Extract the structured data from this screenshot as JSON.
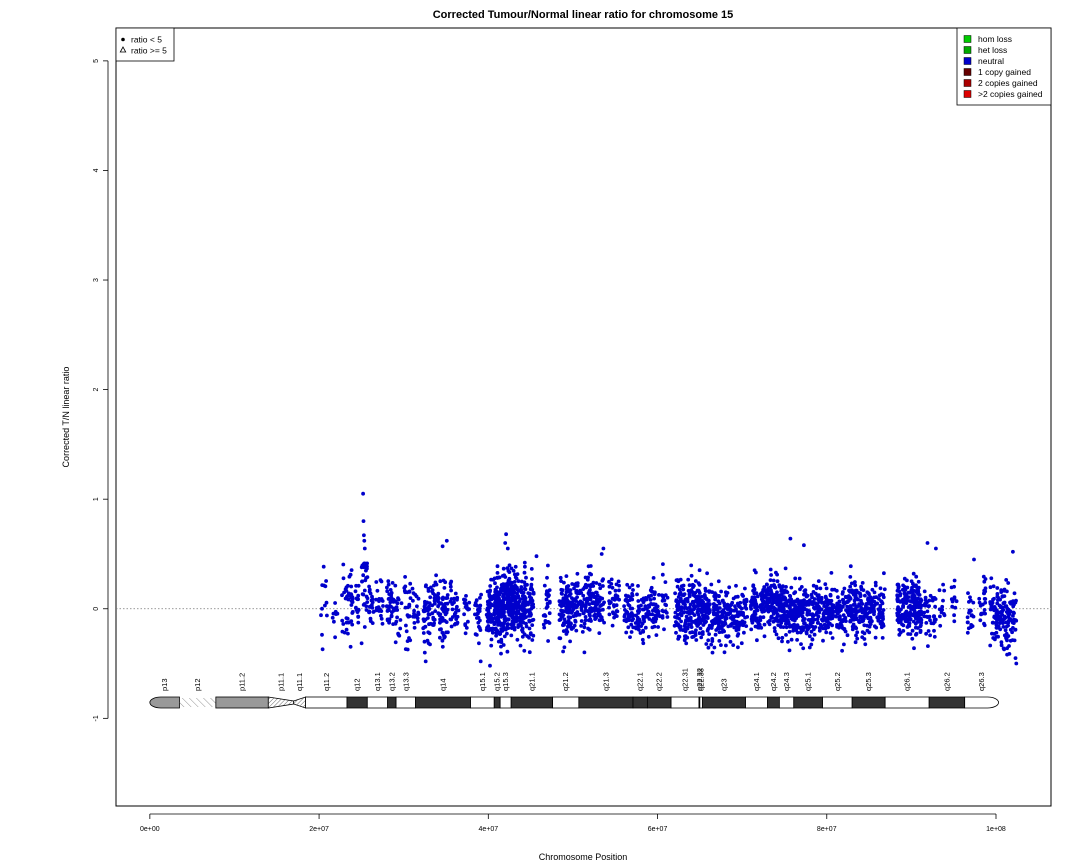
{
  "chart_data": {
    "type": "scatter",
    "title": "Corrected Tumour/Normal linear ratio for chromosome  15",
    "xlabel": "Chromosome Position",
    "ylabel": "Corrected T/N linear ratio",
    "xlim": [
      -4000000,
      106500000
    ],
    "ylim": [
      -1.8,
      5.3
    ],
    "x_ticks": [
      0,
      20000000,
      40000000,
      60000000,
      80000000,
      100000000
    ],
    "x_tick_labels": [
      "0e+00",
      "2e+07",
      "4e+07",
      "6e+07",
      "8e+07",
      "1e+08"
    ],
    "y_ticks": [
      -1,
      0,
      1,
      2,
      3,
      4,
      5
    ],
    "y_tick_labels": [
      "-1",
      "0",
      "1",
      "2",
      "3",
      "4",
      "5"
    ],
    "reference_line": 0,
    "shape_legend": {
      "position": "top-left",
      "entries": [
        {
          "symbol": "dot",
          "label": "ratio < 5"
        },
        {
          "symbol": "triangle",
          "label": "ratio >= 5"
        }
      ]
    },
    "color_legend": {
      "position": "top-right",
      "entries": [
        {
          "label": "hom loss",
          "color": "#00cc00"
        },
        {
          "label": "het loss",
          "color": "#00aa00"
        },
        {
          "label": "neutral",
          "color": "#0000cc"
        },
        {
          "label": "1 copy gained",
          "color": "#660000"
        },
        {
          "label": "2 copies gained",
          "color": "#aa0000"
        },
        {
          "label": ">2 copies gained",
          "color": "#dd0000"
        }
      ]
    },
    "series": [
      {
        "color": "#0000cc",
        "clusters": [
          [
            20200000,
            21000000,
            0.05,
            0.17,
            12,
            11
          ],
          [
            21600000,
            22300000,
            0.0,
            0.12,
            10,
            12
          ],
          [
            22700000,
            23600000,
            0.04,
            0.14,
            24,
            13
          ],
          [
            23700000,
            24100000,
            0.08,
            0.15,
            18,
            14
          ],
          [
            24300000,
            24700000,
            0.05,
            0.13,
            15,
            15
          ],
          [
            25000000,
            25800000,
            0.2,
            0.22,
            30,
            16
          ],
          [
            25900000,
            26500000,
            0.05,
            0.12,
            20,
            17
          ],
          [
            26700000,
            27600000,
            0.0,
            0.13,
            22,
            18
          ],
          [
            28000000,
            28800000,
            0.05,
            0.13,
            36,
            19
          ],
          [
            29000000,
            29800000,
            -0.03,
            0.14,
            20,
            20
          ],
          [
            30000000,
            30800000,
            -0.05,
            0.16,
            25,
            21
          ],
          [
            31000000,
            31800000,
            0.0,
            0.12,
            18,
            22
          ],
          [
            32200000,
            33200000,
            -0.02,
            0.15,
            40,
            23
          ],
          [
            33200000,
            34200000,
            0.06,
            0.14,
            30,
            24
          ],
          [
            34200000,
            35300000,
            -0.05,
            0.15,
            50,
            25
          ],
          [
            35500000,
            36500000,
            0.02,
            0.13,
            30,
            26
          ],
          [
            37100000,
            37800000,
            0.0,
            0.12,
            20,
            27
          ],
          [
            38400000,
            39200000,
            -0.05,
            0.14,
            25,
            28
          ],
          [
            39800000,
            40700000,
            -0.03,
            0.13,
            60,
            29
          ],
          [
            40700000,
            42100000,
            0.03,
            0.15,
            180,
            30
          ],
          [
            42200000,
            43600000,
            0.05,
            0.14,
            180,
            31
          ],
          [
            43700000,
            45400000,
            0.02,
            0.15,
            130,
            32
          ],
          [
            46500000,
            47300000,
            0.06,
            0.13,
            30,
            33
          ],
          [
            48400000,
            50000000,
            0.0,
            0.15,
            110,
            34
          ],
          [
            50000000,
            51500000,
            0.05,
            0.13,
            70,
            35
          ],
          [
            51500000,
            53700000,
            0.08,
            0.12,
            100,
            36
          ],
          [
            54200000,
            55500000,
            0.05,
            0.12,
            40,
            37
          ],
          [
            56000000,
            57200000,
            -0.02,
            0.12,
            50,
            38
          ],
          [
            57400000,
            58500000,
            -0.06,
            0.13,
            40,
            39
          ],
          [
            58500000,
            60300000,
            0.0,
            0.12,
            60,
            40
          ],
          [
            60500000,
            61200000,
            0.04,
            0.12,
            20,
            41
          ],
          [
            62000000,
            63200000,
            0.0,
            0.13,
            60,
            42
          ],
          [
            63200000,
            64700000,
            -0.03,
            0.13,
            90,
            43
          ],
          [
            64700000,
            66200000,
            0.0,
            0.13,
            110,
            44
          ],
          [
            66300000,
            67600000,
            -0.06,
            0.12,
            70,
            45
          ],
          [
            67600000,
            69100000,
            -0.08,
            0.12,
            60,
            46
          ],
          [
            69100000,
            70600000,
            -0.05,
            0.12,
            60,
            47
          ],
          [
            71000000,
            72300000,
            -0.02,
            0.12,
            80,
            48
          ],
          [
            72300000,
            73700000,
            0.05,
            0.12,
            80,
            49
          ],
          [
            73700000,
            75300000,
            0.02,
            0.13,
            120,
            50
          ],
          [
            75300000,
            76800000,
            -0.02,
            0.12,
            100,
            51
          ],
          [
            76800000,
            78200000,
            -0.05,
            0.12,
            80,
            52
          ],
          [
            78200000,
            79700000,
            0.0,
            0.12,
            80,
            53
          ],
          [
            79700000,
            81000000,
            -0.02,
            0.12,
            70,
            54
          ],
          [
            81100000,
            82300000,
            -0.05,
            0.12,
            60,
            55
          ],
          [
            82400000,
            83800000,
            0.0,
            0.12,
            80,
            56
          ],
          [
            83800000,
            85300000,
            -0.02,
            0.12,
            80,
            57
          ],
          [
            85300000,
            86900000,
            0.0,
            0.12,
            60,
            58
          ],
          [
            88300000,
            89600000,
            0.0,
            0.13,
            80,
            59
          ],
          [
            89600000,
            91200000,
            0.02,
            0.13,
            120,
            60
          ],
          [
            91500000,
            92900000,
            -0.05,
            0.12,
            40,
            61
          ],
          [
            93300000,
            94000000,
            0.05,
            0.1,
            12,
            62
          ],
          [
            94600000,
            95400000,
            0.05,
            0.1,
            12,
            63
          ],
          [
            96600000,
            97400000,
            -0.02,
            0.12,
            20,
            64
          ],
          [
            98000000,
            98800000,
            0.03,
            0.12,
            25,
            65
          ],
          [
            99200000,
            100300000,
            -0.05,
            0.12,
            50,
            66
          ],
          [
            100300000,
            102400000,
            -0.08,
            0.13,
            100,
            67
          ]
        ],
        "outliers": [
          [
            25200000,
            1.05
          ],
          [
            25250000,
            0.8
          ],
          [
            25300000,
            0.67
          ],
          [
            25350000,
            0.62
          ],
          [
            25400000,
            0.55
          ],
          [
            35100000,
            0.62
          ],
          [
            34600000,
            0.57
          ],
          [
            42100000,
            0.68
          ],
          [
            42000000,
            0.6
          ],
          [
            42300000,
            0.55
          ],
          [
            45700000,
            0.48
          ],
          [
            53600000,
            0.55
          ],
          [
            53400000,
            0.5
          ],
          [
            75700000,
            0.64
          ],
          [
            77300000,
            0.58
          ],
          [
            91900000,
            0.6
          ],
          [
            92900000,
            0.55
          ],
          [
            102000000,
            0.52
          ],
          [
            97400000,
            0.45
          ],
          [
            32500000,
            -0.4
          ],
          [
            32600000,
            -0.48
          ],
          [
            39100000,
            -0.48
          ],
          [
            102300000,
            -0.45
          ],
          [
            102400000,
            -0.5
          ],
          [
            40200000,
            -0.52
          ],
          [
            66500000,
            -0.4
          ],
          [
            75600000,
            -0.38
          ]
        ]
      }
    ],
    "ideogram": [
      {
        "name": "p13",
        "start": 0,
        "end": 3500000,
        "stain": "gvar"
      },
      {
        "name": "p12",
        "start": 3500000,
        "end": 7800000,
        "stain": "stalk"
      },
      {
        "name": "p11.2",
        "start": 7800000,
        "end": 14000000,
        "stain": "gvar"
      },
      {
        "name": "p11.1",
        "start": 14000000,
        "end": 17000000,
        "stain": "acen"
      },
      {
        "name": "q11.1",
        "start": 17000000,
        "end": 18400000,
        "stain": "acen"
      },
      {
        "name": "q11.2",
        "start": 18400000,
        "end": 23300000,
        "stain": "gneg"
      },
      {
        "name": "q12",
        "start": 23300000,
        "end": 25700000,
        "stain": "gpos"
      },
      {
        "name": "q13.1",
        "start": 25700000,
        "end": 28100000,
        "stain": "gneg"
      },
      {
        "name": "q13.2",
        "start": 28100000,
        "end": 29100000,
        "stain": "gpos"
      },
      {
        "name": "q13.3",
        "start": 29100000,
        "end": 31400000,
        "stain": "gneg"
      },
      {
        "name": "q14",
        "start": 31400000,
        "end": 37900000,
        "stain": "gpos"
      },
      {
        "name": "q15.1",
        "start": 37900000,
        "end": 40700000,
        "stain": "gneg"
      },
      {
        "name": "q15.2",
        "start": 40700000,
        "end": 41400000,
        "stain": "gpos"
      },
      {
        "name": "q15.3",
        "start": 41400000,
        "end": 42700000,
        "stain": "gneg"
      },
      {
        "name": "q21.1",
        "start": 42700000,
        "end": 47600000,
        "stain": "gpos"
      },
      {
        "name": "q21.2",
        "start": 47600000,
        "end": 50700000,
        "stain": "gneg"
      },
      {
        "name": "q21.3",
        "start": 50700000,
        "end": 57100000,
        "stain": "gpos"
      },
      {
        "name": "q22.1",
        "start": 57100000,
        "end": 58800000,
        "stain": "gpos"
      },
      {
        "name": "q22.2",
        "start": 58800000,
        "end": 61600000,
        "stain": "gpos"
      },
      {
        "name": "q22.31",
        "start": 61600000,
        "end": 64900000,
        "stain": "gneg"
      },
      {
        "name": "q22.32",
        "start": 64900000,
        "end": 65000000,
        "stain": "gpos"
      },
      {
        "name": "q22.33",
        "start": 65000000,
        "end": 65300000,
        "stain": "gneg"
      },
      {
        "name": "q23",
        "start": 65300000,
        "end": 70400000,
        "stain": "gpos"
      },
      {
        "name": "q24.1",
        "start": 70400000,
        "end": 73000000,
        "stain": "gneg"
      },
      {
        "name": "q24.2",
        "start": 73000000,
        "end": 74400000,
        "stain": "gpos"
      },
      {
        "name": "q24.3",
        "start": 74400000,
        "end": 76100000,
        "stain": "gneg"
      },
      {
        "name": "q25.1",
        "start": 76100000,
        "end": 79500000,
        "stain": "gpos"
      },
      {
        "name": "q25.2",
        "start": 79500000,
        "end": 83000000,
        "stain": "gneg"
      },
      {
        "name": "q25.3",
        "start": 83000000,
        "end": 86900000,
        "stain": "gpos"
      },
      {
        "name": "q26.1",
        "start": 86900000,
        "end": 92100000,
        "stain": "gneg"
      },
      {
        "name": "q26.2",
        "start": 92100000,
        "end": 96300000,
        "stain": "gpos"
      },
      {
        "name": "q26.3",
        "start": 96300000,
        "end": 100300000,
        "stain": "gneg"
      }
    ]
  }
}
